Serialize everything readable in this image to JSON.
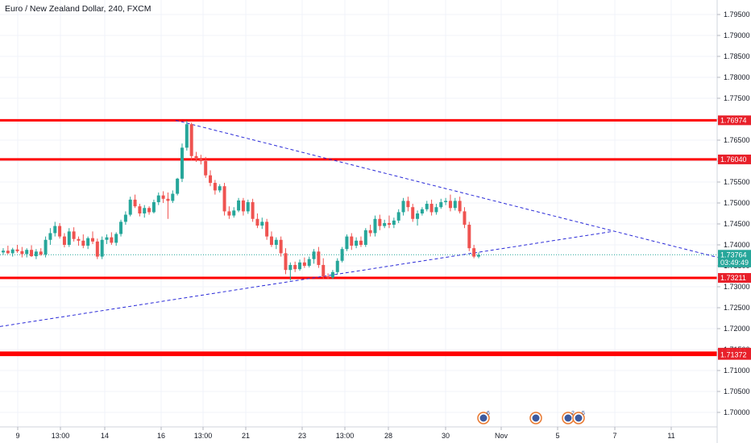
{
  "title": "Euro / New Zealand Dollar, 240, FXCM",
  "chart_data": {
    "type": "candlestick",
    "title": "Euro / New Zealand Dollar, 240, FXCM",
    "ylim": [
      1.6955,
      1.7995
    ],
    "y_ticks": [
      "1.79500",
      "1.79000",
      "1.78500",
      "1.78000",
      "1.77500",
      "1.77000",
      "1.76500",
      "1.76000",
      "1.75500",
      "1.75000",
      "1.74500",
      "1.74000",
      "1.73500",
      "1.73000",
      "1.72500",
      "1.72000",
      "1.71500",
      "1.71000",
      "1.70500",
      "1.70000"
    ],
    "x_ticks": [
      "9",
      "13:00",
      "14",
      "16",
      "13:00",
      "21",
      "23",
      "13:00",
      "28",
      "30",
      "Nov",
      "5",
      "7",
      "11"
    ],
    "price_labels": [
      {
        "label": "1.76974",
        "value": 1.76974,
        "color": "#e8202a"
      },
      {
        "label": "1.76040",
        "value": 1.7604,
        "color": "#e8202a"
      },
      {
        "label": "1.73764",
        "value": 1.73764,
        "color": "#26a69a"
      },
      {
        "label": "03:49:49",
        "value": 1.7358,
        "color": "#26a69a"
      },
      {
        "label": "1.73211",
        "value": 1.73211,
        "color": "#e8202a"
      },
      {
        "label": "1.71426",
        "value": 1.71426,
        "color": "#e8202a"
      },
      {
        "label": "1.71372",
        "value": 1.71372,
        "color": "#e8202a"
      }
    ],
    "horizontal_levels": [
      1.76974,
      1.7604,
      1.73211,
      1.71426,
      1.71372
    ],
    "last_price": 1.73764,
    "trendlines": [
      {
        "name": "descending",
        "points": [
          [
            218,
            1.76974
          ],
          [
            932,
            1.735
          ]
        ]
      },
      {
        "name": "ascending",
        "points": [
          [
            0,
            1.7205
          ],
          [
            760,
            1.7432
          ]
        ]
      }
    ],
    "candles": [
      [
        1.7382,
        1.7392,
        1.7376,
        1.7386
      ],
      [
        1.7386,
        1.7398,
        1.7378,
        1.738
      ],
      [
        1.738,
        1.7393,
        1.7372,
        1.7389
      ],
      [
        1.7389,
        1.74,
        1.7381,
        1.7385
      ],
      [
        1.7385,
        1.7395,
        1.737,
        1.7378
      ],
      [
        1.7378,
        1.7392,
        1.737,
        1.7388
      ],
      [
        1.7388,
        1.7399,
        1.7371,
        1.7373
      ],
      [
        1.7373,
        1.739,
        1.7366,
        1.7384
      ],
      [
        1.7384,
        1.7392,
        1.7374,
        1.7377
      ],
      [
        1.7377,
        1.742,
        1.737,
        1.7412
      ],
      [
        1.7412,
        1.744,
        1.74,
        1.7428
      ],
      [
        1.7428,
        1.7455,
        1.742,
        1.7445
      ],
      [
        1.7445,
        1.7452,
        1.7415,
        1.742
      ],
      [
        1.742,
        1.7428,
        1.7394,
        1.74
      ],
      [
        1.74,
        1.744,
        1.7395,
        1.7432
      ],
      [
        1.7432,
        1.7442,
        1.7408,
        1.7414
      ],
      [
        1.7414,
        1.742,
        1.7398,
        1.741
      ],
      [
        1.741,
        1.7425,
        1.7392,
        1.7398
      ],
      [
        1.7398,
        1.742,
        1.739,
        1.7416
      ],
      [
        1.7416,
        1.7432,
        1.7402,
        1.7408
      ],
      [
        1.7408,
        1.7415,
        1.7366,
        1.7372
      ],
      [
        1.7372,
        1.742,
        1.7366,
        1.7412
      ],
      [
        1.7412,
        1.7425,
        1.7402,
        1.7418
      ],
      [
        1.7418,
        1.743,
        1.74,
        1.7405
      ],
      [
        1.7405,
        1.743,
        1.7398,
        1.7426
      ],
      [
        1.7426,
        1.746,
        1.742,
        1.7455
      ],
      [
        1.7455,
        1.748,
        1.7448,
        1.7472
      ],
      [
        1.7472,
        1.7515,
        1.7468,
        1.7508
      ],
      [
        1.7508,
        1.752,
        1.7488,
        1.7492
      ],
      [
        1.7492,
        1.7498,
        1.7468,
        1.7475
      ],
      [
        1.7475,
        1.7495,
        1.7465,
        1.7488
      ],
      [
        1.7488,
        1.7492,
        1.7472,
        1.7478
      ],
      [
        1.7478,
        1.7508,
        1.7475,
        1.7502
      ],
      [
        1.7502,
        1.7525,
        1.7495,
        1.7518
      ],
      [
        1.7518,
        1.7528,
        1.75,
        1.751
      ],
      [
        1.751,
        1.7525,
        1.7462,
        1.7505
      ],
      [
        1.7505,
        1.753,
        1.75,
        1.7522
      ],
      [
        1.7522,
        1.756,
        1.7518,
        1.7558
      ],
      [
        1.7558,
        1.7642,
        1.755,
        1.7632
      ],
      [
        1.7632,
        1.7697,
        1.7625,
        1.7688
      ],
      [
        1.7688,
        1.7692,
        1.7602,
        1.7612
      ],
      [
        1.7612,
        1.7622,
        1.7598,
        1.7605
      ],
      [
        1.7605,
        1.7615,
        1.7592,
        1.76
      ],
      [
        1.76,
        1.761,
        1.756,
        1.7566
      ],
      [
        1.7566,
        1.7578,
        1.754,
        1.7548
      ],
      [
        1.7548,
        1.7555,
        1.752,
        1.753
      ],
      [
        1.753,
        1.7545,
        1.7525,
        1.754
      ],
      [
        1.754,
        1.7548,
        1.747,
        1.748
      ],
      [
        1.748,
        1.7492,
        1.7462,
        1.747
      ],
      [
        1.747,
        1.749,
        1.7465,
        1.7482
      ],
      [
        1.7482,
        1.7512,
        1.7478,
        1.7506
      ],
      [
        1.7506,
        1.7512,
        1.747,
        1.748
      ],
      [
        1.748,
        1.7508,
        1.7474,
        1.7502
      ],
      [
        1.7502,
        1.751,
        1.7455,
        1.7462
      ],
      [
        1.7462,
        1.7475,
        1.744,
        1.7446
      ],
      [
        1.7446,
        1.7465,
        1.7438,
        1.7455
      ],
      [
        1.7455,
        1.7462,
        1.7412,
        1.742
      ],
      [
        1.742,
        1.7432,
        1.7395,
        1.74
      ],
      [
        1.74,
        1.7418,
        1.739,
        1.7412
      ],
      [
        1.7412,
        1.742,
        1.7372,
        1.738
      ],
      [
        1.738,
        1.7392,
        1.733,
        1.734
      ],
      [
        1.734,
        1.7358,
        1.7315,
        1.7352
      ],
      [
        1.7352,
        1.736,
        1.7335,
        1.7342
      ],
      [
        1.7342,
        1.7365,
        1.7338,
        1.7358
      ],
      [
        1.7358,
        1.737,
        1.7345,
        1.735
      ],
      [
        1.735,
        1.7372,
        1.7346,
        1.7366
      ],
      [
        1.7366,
        1.739,
        1.7355,
        1.7384
      ],
      [
        1.7384,
        1.7395,
        1.7345,
        1.7352
      ],
      [
        1.7352,
        1.7368,
        1.7318,
        1.7325
      ],
      [
        1.7325,
        1.7332,
        1.7318,
        1.7322
      ],
      [
        1.7322,
        1.734,
        1.7318,
        1.7335
      ],
      [
        1.7335,
        1.7368,
        1.733,
        1.7362
      ],
      [
        1.7362,
        1.7395,
        1.7358,
        1.739
      ],
      [
        1.739,
        1.7425,
        1.7385,
        1.742
      ],
      [
        1.742,
        1.7428,
        1.7388,
        1.7398
      ],
      [
        1.7398,
        1.7418,
        1.7392,
        1.741
      ],
      [
        1.741,
        1.742,
        1.7395,
        1.74
      ],
      [
        1.74,
        1.744,
        1.7395,
        1.7435
      ],
      [
        1.7435,
        1.7448,
        1.742,
        1.7428
      ],
      [
        1.7428,
        1.747,
        1.742,
        1.7462
      ],
      [
        1.7462,
        1.7472,
        1.7435,
        1.7445
      ],
      [
        1.7445,
        1.746,
        1.744,
        1.7452
      ],
      [
        1.7452,
        1.747,
        1.744,
        1.7448
      ],
      [
        1.7448,
        1.7465,
        1.744,
        1.7458
      ],
      [
        1.7458,
        1.7485,
        1.7452,
        1.7478
      ],
      [
        1.7478,
        1.7512,
        1.747,
        1.7505
      ],
      [
        1.7505,
        1.7515,
        1.748,
        1.749
      ],
      [
        1.749,
        1.7498,
        1.7455,
        1.7462
      ],
      [
        1.7462,
        1.7482,
        1.7446,
        1.7475
      ],
      [
        1.7475,
        1.749,
        1.747,
        1.7485
      ],
      [
        1.7485,
        1.7505,
        1.748,
        1.7498
      ],
      [
        1.7498,
        1.7508,
        1.747,
        1.7478
      ],
      [
        1.7478,
        1.7498,
        1.7472,
        1.749
      ],
      [
        1.749,
        1.751,
        1.7486,
        1.7502
      ],
      [
        1.7502,
        1.7512,
        1.7495,
        1.7505
      ],
      [
        1.7505,
        1.752,
        1.748,
        1.7488
      ],
      [
        1.7488,
        1.7512,
        1.7482,
        1.7505
      ],
      [
        1.7505,
        1.7515,
        1.7475,
        1.748
      ],
      [
        1.748,
        1.749,
        1.744,
        1.7448
      ],
      [
        1.7448,
        1.7455,
        1.7385,
        1.7392
      ],
      [
        1.7392,
        1.74,
        1.7368,
        1.7372
      ],
      [
        1.7372,
        1.7382,
        1.7368,
        1.7376
      ]
    ]
  },
  "chart_colors": {
    "up": "#26a69a",
    "down": "#ef5350",
    "level_line": "#ff0000",
    "trendline": "#2a2ad8",
    "grid": "#f0f3fa",
    "axis_text": "#131722"
  },
  "event_icons": [
    {
      "icon": "economic-event-icon",
      "label": "6"
    },
    {
      "icon": "economic-event-icon",
      "label": ""
    },
    {
      "icon": "economic-event-icon",
      "label": "2"
    },
    {
      "icon": "economic-event-icon",
      "label": "5"
    }
  ]
}
